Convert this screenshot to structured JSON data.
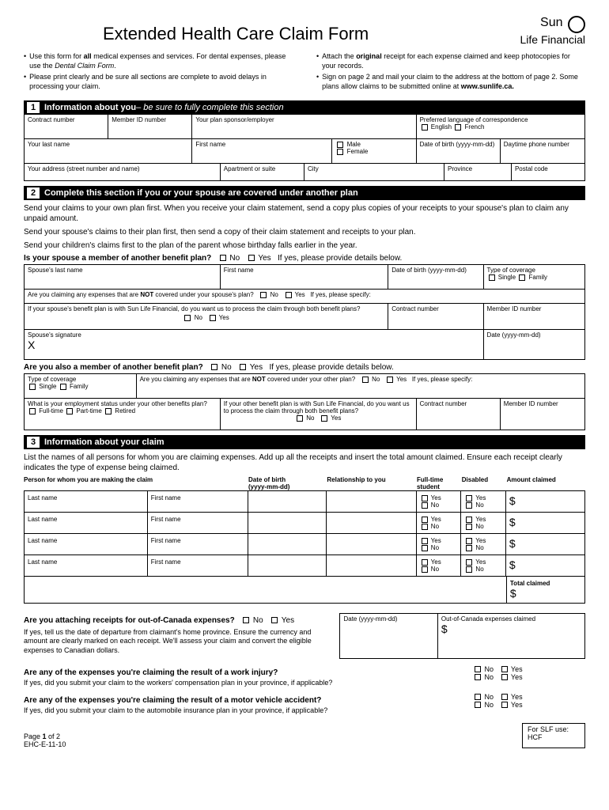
{
  "title": "Extended Health Care Claim Form",
  "logo": {
    "brand1": "Sun",
    "brand2": "Life Financial"
  },
  "intro": {
    "left": [
      "Use this form for <b>all</b> medical expenses and services. For dental expenses, please use the <i>Dental Claim Form</i>.",
      "Please print clearly and be sure all sections are complete to avoid delays in processing your claim."
    ],
    "right": [
      "Attach the <b>original</b> receipt for each expense claimed and keep photocopies for your records.",
      "Sign on page 2 and mail your claim to the address at the bottom of page 2. Some plans allow claims to be submitted online at <b>www.sunlife.ca.</b>"
    ]
  },
  "s1": {
    "num": "1",
    "title": "Information about you",
    "sub": " – be sure to fully complete this section",
    "labels": {
      "contract": "Contract number",
      "member": "Member ID number",
      "sponsor": "Your plan sponsor/employer",
      "lang": "Preferred language of correspondence",
      "english": "English",
      "french": "French",
      "lastname": "Your last name",
      "firstname": "First name",
      "male": "Male",
      "female": "Female",
      "dob": "Date of birth (yyyy-mm-dd)",
      "phone": "Daytime phone number",
      "address": "Your address (street number and name)",
      "apt": "Apartment or suite",
      "city": "City",
      "prov": "Province",
      "postal": "Postal code"
    }
  },
  "s2": {
    "num": "2",
    "title": "Complete this section if you or your spouse are covered under another plan",
    "p1": "Send your claims to your own plan first. When you receive your claim statement, send a copy plus copies of your receipts to your spouse's plan to claim any unpaid amount.",
    "p2": "Send your spouse's claims to their plan first, then send a copy of their claim statement and receipts to your plan.",
    "p3": "Send your children's claims first to the plan of the parent whose birthday falls earlier in the year.",
    "q1": "Is your spouse a member of another benefit plan?",
    "q1_tail": "If yes, please provide details below.",
    "no": "No",
    "yes": "Yes",
    "labels": {
      "sp_last": "Spouse's last name",
      "sp_first": "First name",
      "sp_dob": "Date of birth (yyyy-mm-dd)",
      "cov": "Type of coverage",
      "single": "Single",
      "family": "Family",
      "not_cov": "Are you claiming any expenses that are <b>NOT</b> covered under your spouse's plan?",
      "specify": "If yes, please specify:",
      "both": "If your spouse's benefit plan is with Sun Life Financial, do you want us to process the claim through both benefit plans?",
      "contract": "Contract number",
      "member": "Member ID number",
      "sig": "Spouse's signature",
      "date": "Date (yyyy-mm-dd)"
    },
    "q2": "Are you also a member of another benefit plan?",
    "q2_tail": "If yes, please provide details below.",
    "labels2": {
      "cov": "Type of coverage",
      "not_cov": "Are you claiming any expenses that are <b>NOT</b> covered under your other plan?",
      "specify": "If yes, please specify:",
      "emp": "What is your employment status under your other benefits plan?",
      "ft": "Full-time",
      "pt": "Part-time",
      "ret": "Retired",
      "both": "If your other benefit plan is with Sun Life Financial, do you want us to process the claim through both benefit plans?",
      "contract": "Contract number",
      "member": "Member ID number"
    }
  },
  "s3": {
    "num": "3",
    "title": "Information about your claim",
    "p1": "List the names of all persons for whom you are claiming expenses. Add up all the receipts and insert the total amount claimed. Ensure each receipt clearly indicates the type of expense being claimed.",
    "hdrs": {
      "person": "Person for whom you are making the claim",
      "dob": "Date of birth\n(yyyy-mm-dd)",
      "rel": "Relationship to you",
      "ft": "Full-time\nstudent",
      "dis": "Disabled",
      "amt": "Amount claimed"
    },
    "last": "Last name",
    "first": "First name",
    "yes": "Yes",
    "no": "No",
    "total": "Total claimed",
    "dollar": "$",
    "q_ooc": "Are you attaching receipts for out-of-Canada expenses?",
    "ooc_text": "If yes, tell us the date of departure from claimant's home province. Ensure the currency and amount are clearly marked on each receipt. We'll assess your claim and convert the eligible expenses to Canadian dollars.",
    "ooc_date": "Date (yyyy-mm-dd)",
    "ooc_amt": "Out-of-Canada expenses claimed",
    "q_work": "Are any of the expenses you're claiming the result of a work injury?",
    "work_sub": "If yes, did you submit your claim to the workers' compensation plan in your province, if applicable?",
    "q_mva": "Are any of the expenses you're claiming the result of a motor vehicle accident?",
    "mva_sub": "If yes, did you submit your claim to the automobile insurance plan in your province, if applicable?"
  },
  "footer": {
    "page": "Page <b>1</b> of 2",
    "code": "EHC-E-11-10",
    "slf": "For SLF use:",
    "hcf": "HCF"
  }
}
